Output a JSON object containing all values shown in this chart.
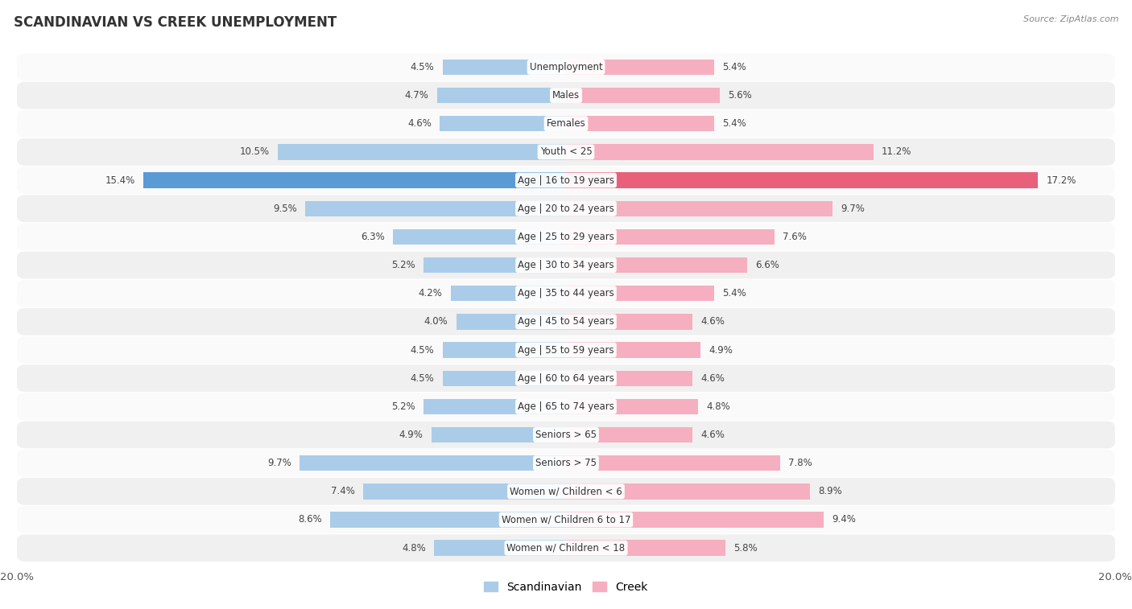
{
  "title": "SCANDINAVIAN VS CREEK UNEMPLOYMENT",
  "source": "Source: ZipAtlas.com",
  "categories": [
    "Unemployment",
    "Males",
    "Females",
    "Youth < 25",
    "Age | 16 to 19 years",
    "Age | 20 to 24 years",
    "Age | 25 to 29 years",
    "Age | 30 to 34 years",
    "Age | 35 to 44 years",
    "Age | 45 to 54 years",
    "Age | 55 to 59 years",
    "Age | 60 to 64 years",
    "Age | 65 to 74 years",
    "Seniors > 65",
    "Seniors > 75",
    "Women w/ Children < 6",
    "Women w/ Children 6 to 17",
    "Women w/ Children < 18"
  ],
  "scandinavian": [
    4.5,
    4.7,
    4.6,
    10.5,
    15.4,
    9.5,
    6.3,
    5.2,
    4.2,
    4.0,
    4.5,
    4.5,
    5.2,
    4.9,
    9.7,
    7.4,
    8.6,
    4.8
  ],
  "creek": [
    5.4,
    5.6,
    5.4,
    11.2,
    17.2,
    9.7,
    7.6,
    6.6,
    5.4,
    4.6,
    4.9,
    4.6,
    4.8,
    4.6,
    7.8,
    8.9,
    9.4,
    5.8
  ],
  "scandinavian_color": "#aacce8",
  "creek_color": "#f5afc0",
  "highlight_scandinavian_color": "#5b9bd5",
  "highlight_creek_color": "#e8607a",
  "highlight_row": 4,
  "axis_max": 20.0,
  "row_bg_odd": "#f0f0f0",
  "row_bg_even": "#fafafa",
  "label_fontsize": 8.5,
  "value_fontsize": 8.5,
  "title_fontsize": 12,
  "bar_height": 0.55
}
